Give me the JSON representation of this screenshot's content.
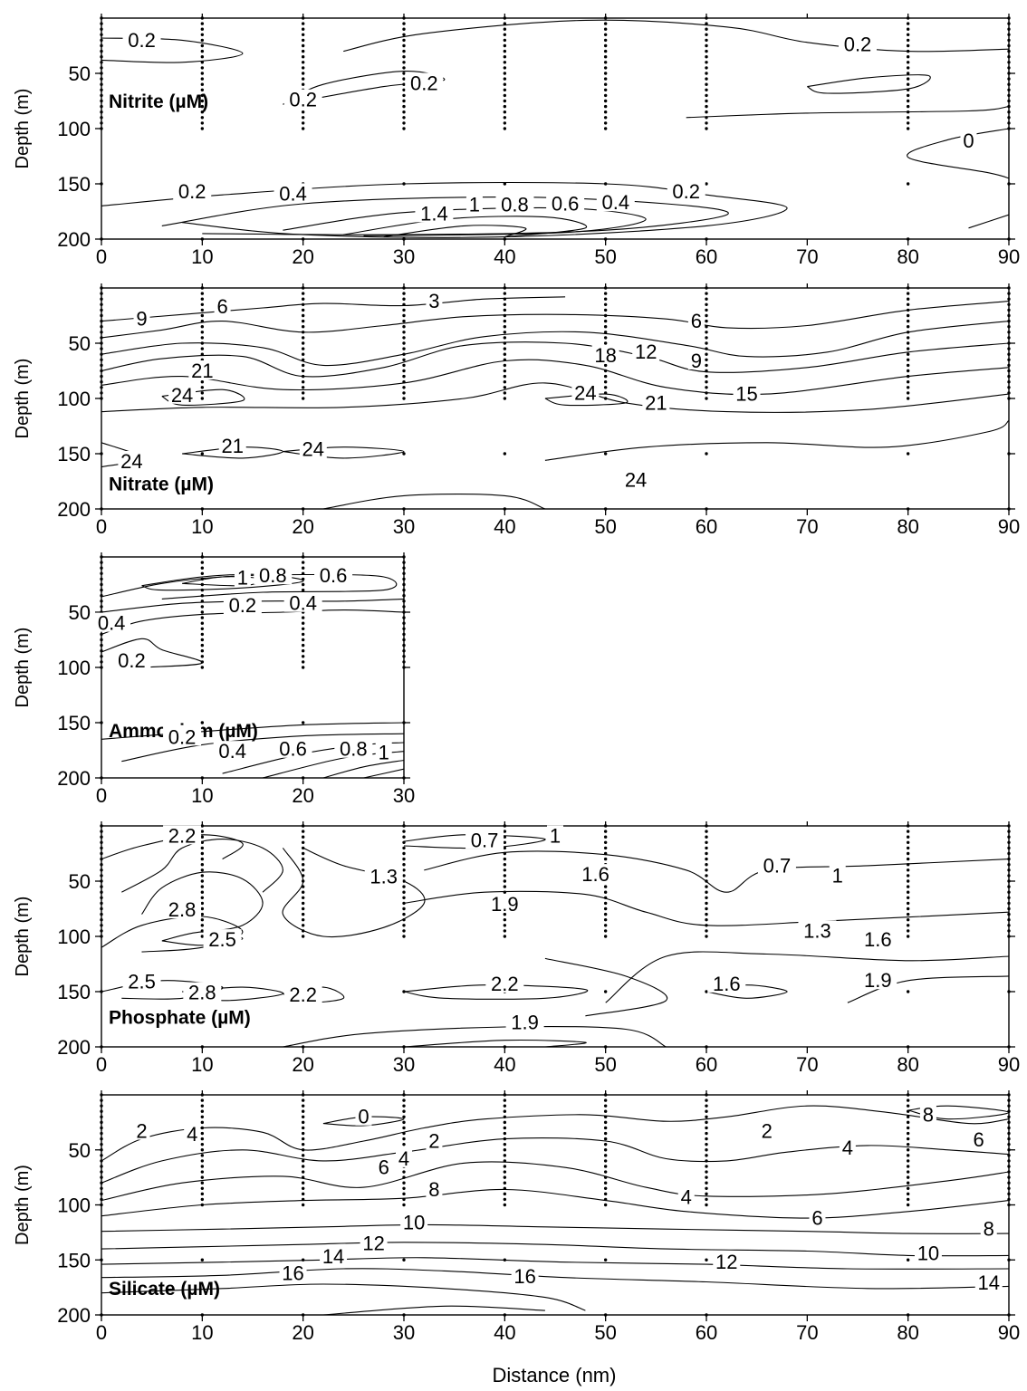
{
  "figure": {
    "xlabel": "Distance (nm)"
  },
  "chart_data": [
    {
      "type": "contour",
      "title": "Nitrite (µM)",
      "ylabel": "Depth (m)",
      "xlim": [
        0,
        90
      ],
      "ylim": [
        200,
        0
      ],
      "y_reversed": true,
      "x_ticks": [
        "0",
        "10",
        "20",
        "30",
        "40",
        "50",
        "60",
        "70",
        "80",
        "90"
      ],
      "y_ticks": [
        "50",
        "100",
        "150",
        "200"
      ],
      "stations_x": [
        0,
        10,
        20,
        30,
        40,
        50,
        60,
        80,
        90
      ],
      "contour_labels": [
        {
          "text": "0.2",
          "x": 4,
          "y": 22
        },
        {
          "text": "0.2",
          "x": 75,
          "y": 26
        },
        {
          "text": "0.2",
          "x": 32,
          "y": 61
        },
        {
          "text": "0.2",
          "x": 20,
          "y": 76
        },
        {
          "text": "0",
          "x": 86,
          "y": 113
        },
        {
          "text": "0.2",
          "x": 9,
          "y": 159
        },
        {
          "text": "0.4",
          "x": 19,
          "y": 161
        },
        {
          "text": "0.2",
          "x": 58,
          "y": 159
        },
        {
          "text": "0.4",
          "x": 51,
          "y": 169
        },
        {
          "text": "0.6",
          "x": 46,
          "y": 170
        },
        {
          "text": "0.8",
          "x": 41,
          "y": 171
        },
        {
          "text": "1",
          "x": 37,
          "y": 171
        },
        {
          "text": "1.4",
          "x": 33,
          "y": 179
        }
      ]
    },
    {
      "type": "contour",
      "title": "Nitrate (µM)",
      "ylabel": "Depth (m)",
      "xlim": [
        0,
        90
      ],
      "ylim": [
        200,
        0
      ],
      "y_reversed": true,
      "x_ticks": [
        "0",
        "10",
        "20",
        "30",
        "40",
        "50",
        "60",
        "70",
        "80",
        "90"
      ],
      "y_ticks": [
        "50",
        "100",
        "150",
        "200"
      ],
      "stations_x": [
        0,
        10,
        20,
        30,
        40,
        50,
        60,
        80,
        90
      ],
      "contour_labels": [
        {
          "text": "9",
          "x": 4,
          "y": 30
        },
        {
          "text": "6",
          "x": 12,
          "y": 19
        },
        {
          "text": "3",
          "x": 33,
          "y": 14
        },
        {
          "text": "6",
          "x": 59,
          "y": 32
        },
        {
          "text": "18",
          "x": 50,
          "y": 63
        },
        {
          "text": "12",
          "x": 54,
          "y": 60
        },
        {
          "text": "9",
          "x": 59,
          "y": 68
        },
        {
          "text": "21",
          "x": 10,
          "y": 77
        },
        {
          "text": "24",
          "x": 8,
          "y": 99
        },
        {
          "text": "24",
          "x": 48,
          "y": 97
        },
        {
          "text": "21",
          "x": 55,
          "y": 106
        },
        {
          "text": "15",
          "x": 64,
          "y": 98
        },
        {
          "text": "21",
          "x": 13,
          "y": 145
        },
        {
          "text": "24",
          "x": 21,
          "y": 148
        },
        {
          "text": "24",
          "x": 3,
          "y": 159
        },
        {
          "text": "24",
          "x": 53,
          "y": 176
        }
      ]
    },
    {
      "type": "contour",
      "title": "Ammonium (µM)",
      "ylabel": "Depth (m)",
      "xlim": [
        0,
        30
      ],
      "ylim": [
        200,
        0
      ],
      "y_reversed": true,
      "x_ticks": [
        "0",
        "10",
        "20",
        "30"
      ],
      "y_ticks": [
        "50",
        "100",
        "150",
        "200"
      ],
      "stations_x": [
        0,
        10,
        20,
        30
      ],
      "contour_labels": [
        {
          "text": "1",
          "x": 14,
          "y": 21
        },
        {
          "text": "0.8",
          "x": 17,
          "y": 19
        },
        {
          "text": "0.6",
          "x": 23,
          "y": 19
        },
        {
          "text": "0.2",
          "x": 14,
          "y": 46
        },
        {
          "text": "0.4",
          "x": 20,
          "y": 44
        },
        {
          "text": "0.4",
          "x": 1,
          "y": 62
        },
        {
          "text": "0.2",
          "x": 3,
          "y": 96
        },
        {
          "text": "0.2",
          "x": 8,
          "y": 165
        },
        {
          "text": "0.4",
          "x": 13,
          "y": 178
        },
        {
          "text": "0.6",
          "x": 19,
          "y": 176
        },
        {
          "text": "0.8",
          "x": 25,
          "y": 176
        },
        {
          "text": "1",
          "x": 28,
          "y": 179
        }
      ]
    },
    {
      "type": "contour",
      "title": "Phosphate (µM)",
      "ylabel": "Depth (m)",
      "xlim": [
        0,
        90
      ],
      "ylim": [
        200,
        0
      ],
      "y_reversed": true,
      "x_ticks": [
        "0",
        "10",
        "20",
        "30",
        "40",
        "50",
        "60",
        "70",
        "80",
        "90"
      ],
      "y_ticks": [
        "50",
        "100",
        "150",
        "200"
      ],
      "stations_x": [
        0,
        10,
        20,
        30,
        40,
        50,
        60,
        80,
        90
      ],
      "contour_labels": [
        {
          "text": "2.2",
          "x": 8,
          "y": 11
        },
        {
          "text": "0.7",
          "x": 38,
          "y": 15
        },
        {
          "text": "1",
          "x": 45,
          "y": 11
        },
        {
          "text": "0.7",
          "x": 67,
          "y": 38
        },
        {
          "text": "1",
          "x": 73,
          "y": 47
        },
        {
          "text": "1.3",
          "x": 28,
          "y": 48
        },
        {
          "text": "1.6",
          "x": 49,
          "y": 46
        },
        {
          "text": "1.9",
          "x": 40,
          "y": 73
        },
        {
          "text": "2.8",
          "x": 8,
          "y": 78
        },
        {
          "text": "2.5",
          "x": 12,
          "y": 105
        },
        {
          "text": "1.3",
          "x": 71,
          "y": 97
        },
        {
          "text": "1.6",
          "x": 77,
          "y": 105
        },
        {
          "text": "2.5",
          "x": 4,
          "y": 143
        },
        {
          "text": "2.8",
          "x": 10,
          "y": 153
        },
        {
          "text": "2.2",
          "x": 20,
          "y": 155
        },
        {
          "text": "2.2",
          "x": 40,
          "y": 145
        },
        {
          "text": "1.6",
          "x": 62,
          "y": 145
        },
        {
          "text": "1.9",
          "x": 77,
          "y": 142
        },
        {
          "text": "1.9",
          "x": 42,
          "y": 180
        }
      ]
    },
    {
      "type": "contour",
      "title": "Silicate (µM)",
      "ylabel": "Depth (m)",
      "xlim": [
        0,
        90
      ],
      "ylim": [
        200,
        0
      ],
      "y_reversed": true,
      "x_ticks": [
        "0",
        "10",
        "20",
        "30",
        "40",
        "50",
        "60",
        "70",
        "80",
        "90"
      ],
      "y_ticks": [
        "50",
        "100",
        "150",
        "200"
      ],
      "stations_x": [
        0,
        10,
        20,
        30,
        40,
        50,
        60,
        80,
        90
      ],
      "contour_labels": [
        {
          "text": "2",
          "x": 4,
          "y": 35
        },
        {
          "text": "4",
          "x": 9,
          "y": 38
        },
        {
          "text": "0",
          "x": 26,
          "y": 22
        },
        {
          "text": "2",
          "x": 33,
          "y": 44
        },
        {
          "text": "4",
          "x": 30,
          "y": 60
        },
        {
          "text": "6",
          "x": 28,
          "y": 68
        },
        {
          "text": "8",
          "x": 33,
          "y": 88
        },
        {
          "text": "2",
          "x": 66,
          "y": 35
        },
        {
          "text": "4",
          "x": 74,
          "y": 50
        },
        {
          "text": "8",
          "x": 82,
          "y": 20
        },
        {
          "text": "6",
          "x": 87,
          "y": 43
        },
        {
          "text": "4",
          "x": 58,
          "y": 95
        },
        {
          "text": "6",
          "x": 71,
          "y": 114
        },
        {
          "text": "10",
          "x": 31,
          "y": 118
        },
        {
          "text": "8",
          "x": 88,
          "y": 124
        },
        {
          "text": "12",
          "x": 27,
          "y": 137
        },
        {
          "text": "14",
          "x": 23,
          "y": 149
        },
        {
          "text": "12",
          "x": 62,
          "y": 154
        },
        {
          "text": "10",
          "x": 82,
          "y": 146
        },
        {
          "text": "16",
          "x": 19,
          "y": 164
        },
        {
          "text": "16",
          "x": 42,
          "y": 167
        },
        {
          "text": "14",
          "x": 88,
          "y": 173
        }
      ]
    }
  ]
}
